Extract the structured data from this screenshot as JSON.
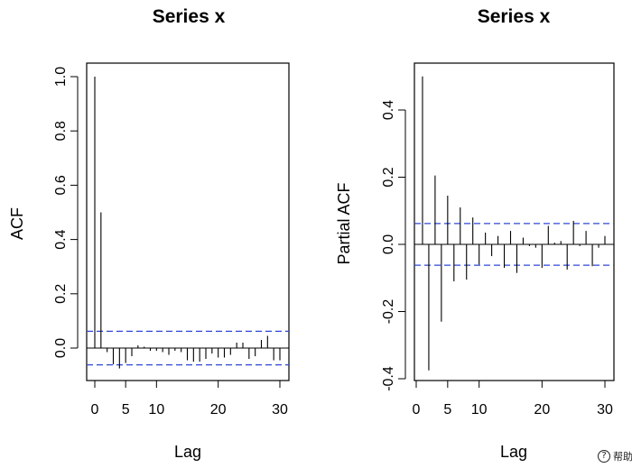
{
  "chart_data": [
    {
      "type": "bar",
      "subtype": "acf-spike",
      "title": "Series  x",
      "xlabel": "Lag",
      "ylabel": "ACF",
      "xlim": [
        0,
        30
      ],
      "ylim": [
        -0.1,
        1.0
      ],
      "xticks": [
        "0",
        "5",
        "10",
        "20",
        "30"
      ],
      "xtick_values": [
        0,
        5,
        10,
        20,
        30
      ],
      "yticks": [
        "0.0",
        "0.2",
        "0.4",
        "0.6",
        "0.8",
        "1.0"
      ],
      "ytick_values": [
        0.0,
        0.2,
        0.4,
        0.6,
        0.8,
        1.0
      ],
      "lags": [
        0,
        1,
        2,
        3,
        4,
        5,
        6,
        7,
        8,
        9,
        10,
        11,
        12,
        13,
        14,
        15,
        16,
        17,
        18,
        19,
        20,
        21,
        22,
        23,
        24,
        25,
        26,
        27,
        28,
        29,
        30
      ],
      "values": [
        1.0,
        0.5,
        -0.015,
        -0.06,
        -0.075,
        -0.055,
        -0.03,
        0.01,
        0.005,
        -0.01,
        -0.01,
        -0.015,
        -0.025,
        -0.01,
        -0.015,
        -0.045,
        -0.05,
        -0.05,
        -0.04,
        -0.02,
        -0.035,
        -0.035,
        -0.025,
        0.02,
        0.02,
        -0.04,
        -0.03,
        0.03,
        0.045,
        -0.045,
        -0.045
      ],
      "confidence_band": 0.062,
      "grid": false
    },
    {
      "type": "bar",
      "subtype": "pacf-spike",
      "title": "Series  x",
      "xlabel": "Lag",
      "ylabel": "Partial ACF",
      "xlim": [
        1,
        30
      ],
      "ylim": [
        -0.4,
        0.5
      ],
      "xticks": [
        "0",
        "5",
        "10",
        "20",
        "30"
      ],
      "xtick_values": [
        0,
        5,
        10,
        20,
        30
      ],
      "yticks": [
        "-0.4",
        "-0.2",
        "0.0",
        "0.2",
        "0.4"
      ],
      "ytick_values": [
        -0.4,
        -0.2,
        0.0,
        0.2,
        0.4
      ],
      "lags": [
        1,
        2,
        3,
        4,
        5,
        6,
        7,
        8,
        9,
        10,
        11,
        12,
        13,
        14,
        15,
        16,
        17,
        18,
        19,
        20,
        21,
        22,
        23,
        24,
        25,
        26,
        27,
        28,
        29,
        30
      ],
      "values": [
        0.5,
        -0.375,
        0.205,
        -0.23,
        0.145,
        -0.11,
        0.11,
        -0.105,
        0.08,
        -0.06,
        0.035,
        -0.035,
        0.025,
        -0.07,
        0.04,
        -0.085,
        0.02,
        -0.005,
        -0.01,
        -0.07,
        0.055,
        0.005,
        0.01,
        -0.075,
        0.07,
        -0.005,
        0.04,
        -0.065,
        -0.01,
        0.025
      ],
      "confidence_band": 0.062,
      "grid": false
    }
  ],
  "colors": {
    "spike": "#000000",
    "confidence_line": "#2f47d6",
    "frame": "#000000"
  },
  "help_badge": {
    "icon": "question-circle-icon",
    "glyph": "?",
    "label": "帮助"
  }
}
